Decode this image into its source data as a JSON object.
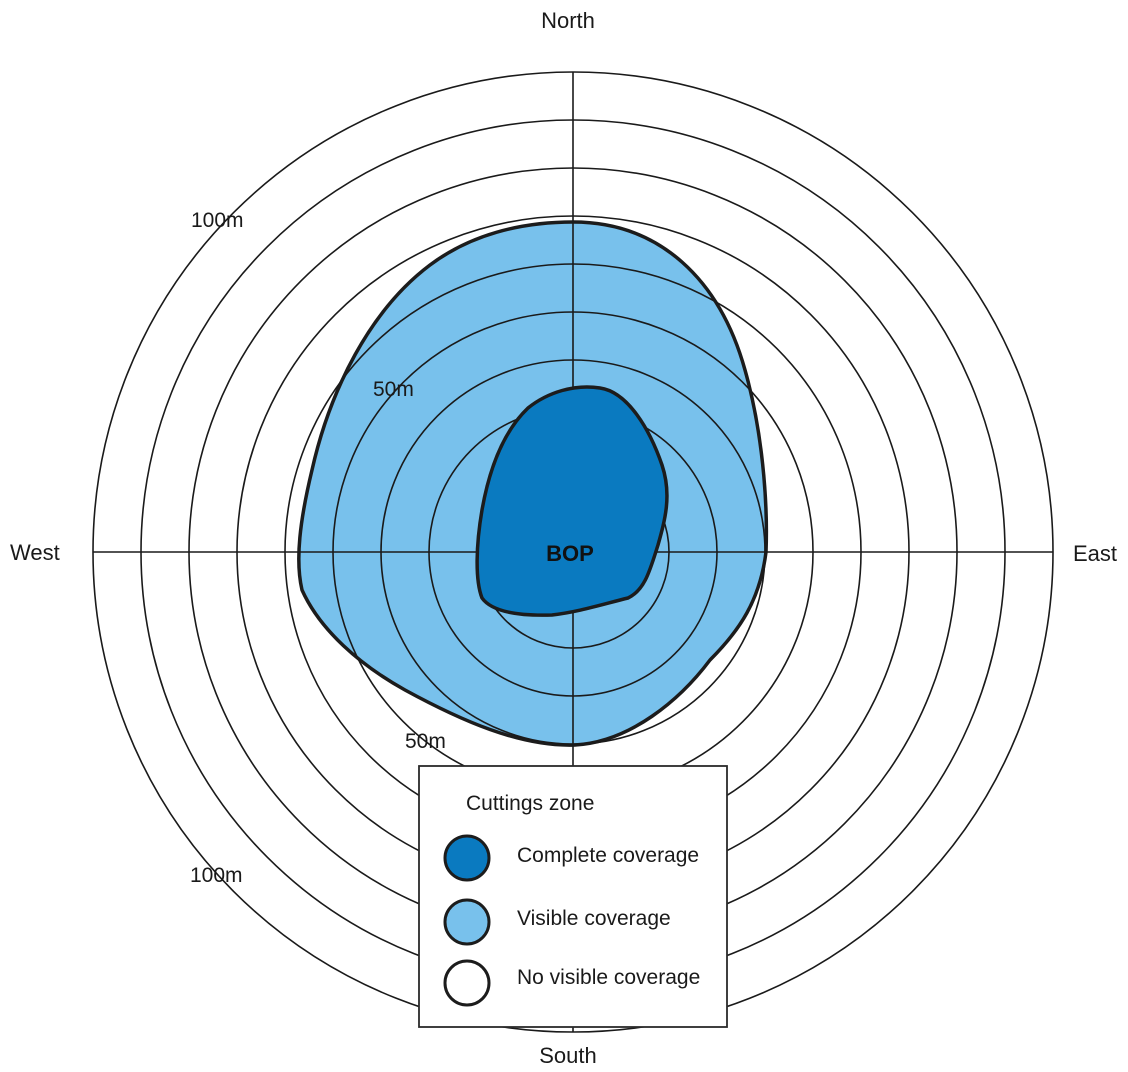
{
  "directions": {
    "north": "North",
    "south": "South",
    "east": "East",
    "west": "West"
  },
  "ring_labels": {
    "upper_outer": "100m",
    "upper_inner": "50m",
    "lower_inner": "50m",
    "lower_outer": "100m"
  },
  "center_label": "BOP",
  "legend": {
    "title": "Cuttings zone",
    "items": [
      {
        "label": "Complete coverage",
        "color": "#0a7ac0"
      },
      {
        "label": "Visible coverage",
        "color": "#78c1ec"
      },
      {
        "label": "No visible coverage",
        "color": "#ffffff"
      }
    ]
  },
  "colors": {
    "complete": "#0a7ac0",
    "visible": "#78c1ec",
    "outline": "#1c1c1c",
    "grid": "#1a1a1a"
  }
}
